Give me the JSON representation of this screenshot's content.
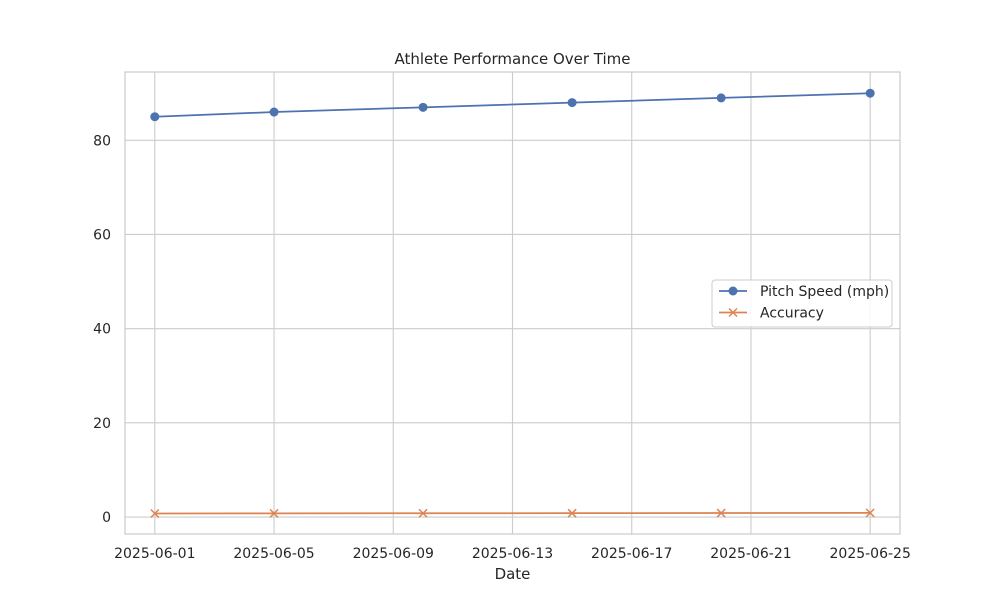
{
  "chart_data": {
    "type": "line",
    "title": "Athlete Performance Over Time",
    "xlabel": "Date",
    "ylabel": "",
    "x": [
      "2025-06-01",
      "2025-06-05",
      "2025-06-10",
      "2025-06-15",
      "2025-06-20",
      "2025-06-25"
    ],
    "x_ticks": [
      "2025-06-01",
      "2025-06-05",
      "2025-06-09",
      "2025-06-13",
      "2025-06-17",
      "2025-06-21",
      "2025-06-25"
    ],
    "xlim": [
      "2025-05-31",
      "2025-06-26"
    ],
    "y_ticks": [
      0,
      20,
      40,
      60,
      80
    ],
    "ylim": [
      -3.6,
      94.5
    ],
    "grid": true,
    "legend_position": "center-right",
    "series": [
      {
        "name": "Pitch Speed (mph)",
        "values": [
          85,
          86,
          87,
          88,
          89,
          90
        ],
        "color": "#4c72b0",
        "marker": "circle"
      },
      {
        "name": "Accuracy",
        "values": [
          0.75,
          0.78,
          0.8,
          0.82,
          0.85,
          0.88
        ],
        "color": "#dd8452",
        "marker": "x"
      }
    ]
  }
}
